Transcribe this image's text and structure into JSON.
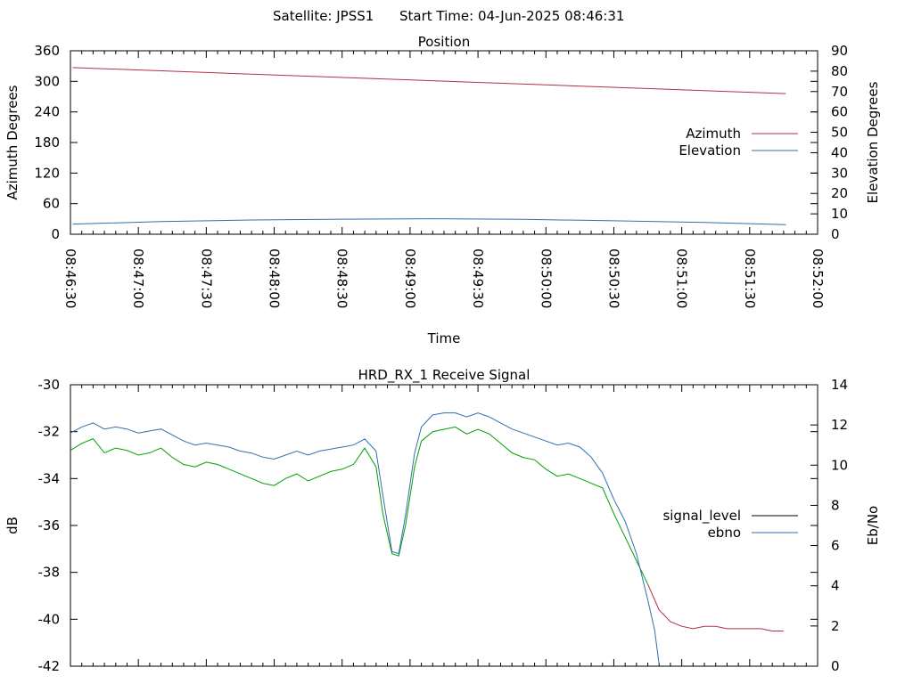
{
  "header": {
    "satellite_text": "Satellite: JPSS1",
    "start_time_text": "Start Time: 04-Jun-2025 08:46:31"
  },
  "chart_data": [
    {
      "type": "line",
      "title": "Position",
      "xlabel": "Time",
      "ylabel": "Azimuth Degrees",
      "y2label": "Elevation Degrees",
      "x_ticks": [
        "08:46:30",
        "08:47:00",
        "08:47:30",
        "08:48:00",
        "08:48:30",
        "08:49:00",
        "08:49:30",
        "08:50:00",
        "08:50:30",
        "08:51:00",
        "08:51:30",
        "08:52:00"
      ],
      "x_range_seconds": [
        0,
        330
      ],
      "ylim": [
        0,
        360
      ],
      "y_ticks": [
        0,
        60,
        120,
        180,
        240,
        300,
        360
      ],
      "y2lim": [
        0,
        90
      ],
      "y2_ticks": [
        0,
        10,
        20,
        30,
        40,
        50,
        60,
        70,
        80,
        90
      ],
      "grid": false,
      "legend": "right",
      "series": [
        {
          "name": "Azimuth",
          "axis": "y",
          "color": "#b03040",
          "x": [
            1,
            316
          ],
          "values": [
            327,
            276
          ]
        },
        {
          "name": "Elevation",
          "axis": "y2",
          "color": "#3070b0",
          "x": [
            1,
            40,
            80,
            120,
            160,
            200,
            240,
            280,
            316
          ],
          "values": [
            5.0,
            6.2,
            7.0,
            7.4,
            7.6,
            7.3,
            6.6,
            5.8,
            4.7
          ]
        }
      ]
    },
    {
      "type": "line",
      "title": "HRD_RX_1 Receive Signal",
      "xlabel": "",
      "ylabel": "dB",
      "y2label": "Eb/No",
      "x_range_seconds": [
        0,
        330
      ],
      "ylim": [
        -42,
        -30
      ],
      "y_ticks": [
        -42,
        -40,
        -38,
        -36,
        -34,
        -32,
        -30
      ],
      "y2lim": [
        0,
        14
      ],
      "y2_ticks": [
        0,
        2,
        4,
        6,
        8,
        10,
        12,
        14
      ],
      "grid": false,
      "legend": "right",
      "series": [
        {
          "name": "signal_level",
          "axis": "y",
          "color": "#00a000",
          "color_after_loss": "#b03040",
          "x": [
            0,
            5,
            10,
            15,
            20,
            25,
            30,
            35,
            40,
            45,
            50,
            55,
            60,
            65,
            70,
            75,
            80,
            85,
            90,
            95,
            100,
            105,
            110,
            115,
            120,
            125,
            130,
            135,
            138,
            142,
            145,
            148,
            152,
            155,
            160,
            165,
            170,
            175,
            180,
            185,
            190,
            195,
            200,
            205,
            210,
            215,
            220,
            225,
            230,
            235,
            240,
            245,
            250,
            255,
            260,
            265,
            270,
            275,
            280,
            285,
            290,
            295,
            300,
            305,
            310,
            315
          ],
          "values": [
            -32.8,
            -32.5,
            -32.3,
            -32.9,
            -32.7,
            -32.8,
            -33.0,
            -32.9,
            -32.7,
            -33.1,
            -33.4,
            -33.5,
            -33.3,
            -33.4,
            -33.6,
            -33.8,
            -34.0,
            -34.2,
            -34.3,
            -34.0,
            -33.8,
            -34.1,
            -33.9,
            -33.7,
            -33.6,
            -33.4,
            -32.7,
            -33.5,
            -35.5,
            -37.2,
            -37.3,
            -36.0,
            -33.5,
            -32.4,
            -32.0,
            -31.9,
            -31.8,
            -32.1,
            -31.9,
            -32.1,
            -32.5,
            -32.9,
            -33.1,
            -33.2,
            -33.6,
            -33.9,
            -33.8,
            -34.0,
            -34.2,
            -34.4,
            -35.5,
            -36.5,
            -37.5,
            -38.5,
            -39.6,
            -40.1,
            -40.3,
            -40.4,
            -40.3,
            -40.3,
            -40.4,
            -40.4,
            -40.4,
            -40.4,
            -40.5,
            -40.5
          ]
        },
        {
          "name": "ebno",
          "axis": "y2",
          "color": "#3070b0",
          "x": [
            0,
            5,
            10,
            15,
            20,
            25,
            30,
            35,
            40,
            45,
            50,
            55,
            60,
            65,
            70,
            75,
            80,
            85,
            90,
            95,
            100,
            105,
            110,
            115,
            120,
            125,
            130,
            135,
            138,
            142,
            145,
            148,
            152,
            155,
            160,
            165,
            170,
            175,
            180,
            185,
            190,
            195,
            200,
            205,
            210,
            215,
            220,
            225,
            230,
            235,
            240,
            245,
            250,
            255,
            258,
            260
          ],
          "values": [
            11.6,
            11.9,
            12.1,
            11.8,
            11.9,
            11.8,
            11.6,
            11.7,
            11.8,
            11.5,
            11.2,
            11.0,
            11.1,
            11.0,
            10.9,
            10.7,
            10.6,
            10.4,
            10.3,
            10.5,
            10.7,
            10.5,
            10.7,
            10.8,
            10.9,
            11.0,
            11.3,
            10.7,
            8.5,
            5.7,
            5.6,
            7.5,
            10.6,
            11.9,
            12.5,
            12.6,
            12.6,
            12.4,
            12.6,
            12.4,
            12.1,
            11.8,
            11.6,
            11.4,
            11.2,
            11.0,
            11.1,
            10.9,
            10.4,
            9.6,
            8.3,
            7.2,
            5.6,
            3.3,
            1.8,
            0.1
          ]
        }
      ]
    }
  ]
}
